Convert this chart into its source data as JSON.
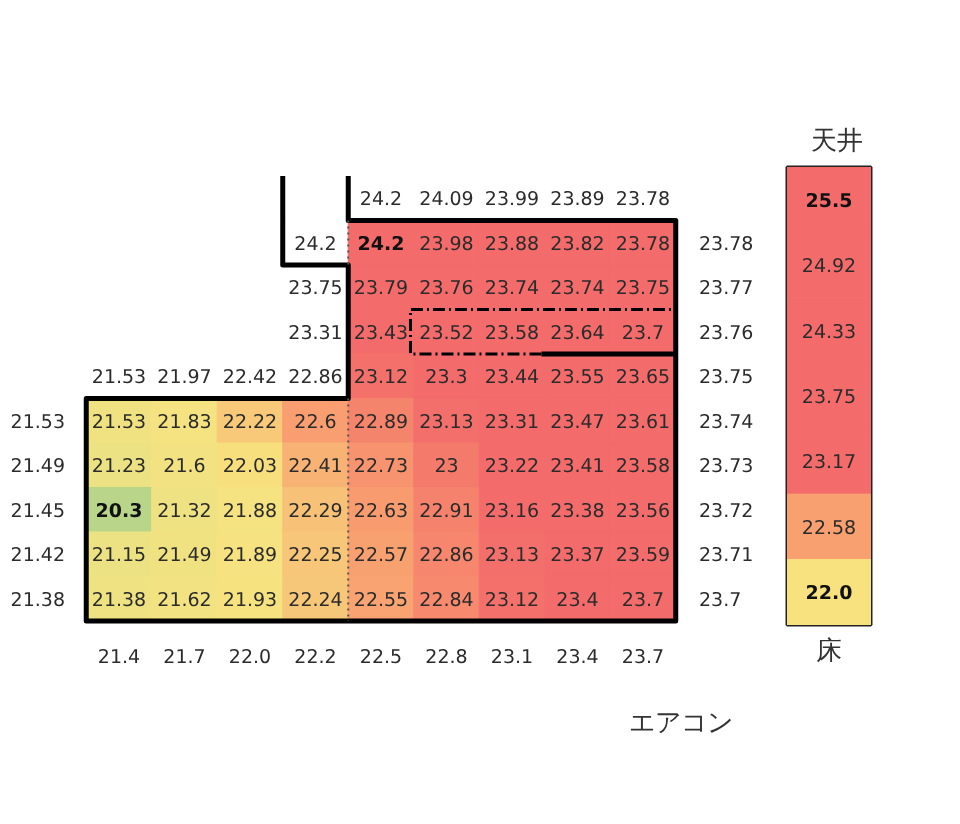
{
  "chart_data": [
    {
      "type": "heatmap",
      "xlabel": "エアコン",
      "data_labels": true,
      "categories": [
        "21.4",
        "21.7",
        "22.0",
        "22.2",
        "22.5",
        "22.8",
        "23.1",
        "23.4",
        "23.7"
      ],
      "y_categories": [
        null,
        null,
        null,
        null,
        "21.53",
        "21.49",
        "21.45",
        "21.42",
        "21.38"
      ],
      "y2_categories": [
        "23.78",
        "23.77",
        "23.76",
        "23.75",
        "23.74",
        "23.73",
        "23.72",
        "23.71",
        "23.7"
      ],
      "cells": [
        [
          null,
          null,
          null,
          null,
          24.2,
          23.98,
          23.88,
          23.82,
          23.78
        ],
        [
          null,
          null,
          null,
          null,
          23.79,
          23.76,
          23.74,
          23.74,
          23.75
        ],
        [
          null,
          null,
          null,
          null,
          23.43,
          23.52,
          23.58,
          23.64,
          23.7
        ],
        [
          null,
          null,
          null,
          null,
          23.12,
          23.3,
          23.44,
          23.55,
          23.65
        ],
        [
          21.53,
          21.83,
          22.22,
          22.6,
          22.89,
          23.13,
          23.31,
          23.47,
          23.61
        ],
        [
          21.23,
          21.6,
          22.03,
          22.41,
          22.73,
          23,
          23.22,
          23.41,
          23.58
        ],
        [
          20.3,
          21.32,
          21.88,
          22.29,
          22.63,
          22.91,
          23.16,
          23.38,
          23.56
        ],
        [
          21.15,
          21.49,
          21.89,
          22.25,
          22.57,
          22.86,
          23.13,
          23.37,
          23.59
        ],
        [
          21.38,
          21.62,
          21.93,
          22.24,
          22.55,
          22.84,
          23.12,
          23.4,
          23.7
        ]
      ],
      "cell_labels": [
        [
          null,
          null,
          null,
          "24.2",
          "24.2",
          "23.98",
          "23.88",
          "23.82",
          "23.78"
        ],
        [
          null,
          null,
          null,
          "23.75",
          "23.79",
          "23.76",
          "23.74",
          "23.74",
          "23.75"
        ],
        [
          null,
          null,
          null,
          "23.31",
          "23.43",
          "23.52",
          "23.58",
          "23.64",
          "23.7"
        ],
        [
          "21.53",
          "21.97",
          "22.42",
          "22.86",
          "23.12",
          "23.3",
          "23.44",
          "23.55",
          "23.65"
        ],
        [
          "21.53",
          "21.83",
          "22.22",
          "22.6",
          "22.89",
          "23.13",
          "23.31",
          "23.47",
          "23.61"
        ],
        [
          "21.23",
          "21.6",
          "22.03",
          "22.41",
          "22.73",
          "23",
          "23.22",
          "23.41",
          "23.58"
        ],
        [
          "20.3",
          "21.32",
          "21.88",
          "22.29",
          "22.63",
          "22.91",
          "23.16",
          "23.38",
          "23.56"
        ],
        [
          "21.15",
          "21.49",
          "21.89",
          "22.25",
          "22.57",
          "22.86",
          "23.13",
          "23.37",
          "23.59"
        ],
        [
          "21.38",
          "21.62",
          "21.93",
          "22.24",
          "22.55",
          "22.84",
          "23.12",
          "23.4",
          "23.7"
        ]
      ],
      "annotations": [
        "24.2",
        "24.09",
        "23.99",
        "23.89",
        "23.78"
      ]
    },
    {
      "type": "heatmap",
      "title": "天井",
      "xlabel": "床",
      "data_labels": true,
      "categories": [
        null
      ],
      "y_categories": [
        null,
        null,
        null,
        null,
        null,
        null,
        null
      ],
      "cells": [
        [
          25.5
        ],
        [
          24.92
        ],
        [
          24.33
        ],
        [
          23.75
        ],
        [
          23.17
        ],
        [
          22.58
        ],
        [
          22.0
        ]
      ],
      "cell_labels": [
        [
          "25.5"
        ],
        [
          "24.92"
        ],
        [
          "24.33"
        ],
        [
          "23.75"
        ],
        [
          "23.17"
        ],
        [
          "22.58"
        ],
        [
          "22.0"
        ]
      ]
    }
  ]
}
